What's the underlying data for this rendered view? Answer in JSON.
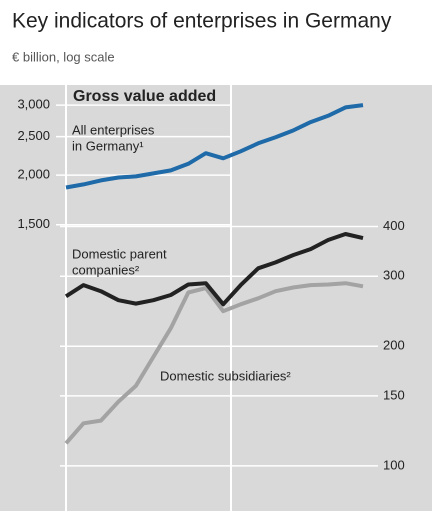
{
  "chart_data": {
    "type": "line",
    "title": "Key indicators of enterprises in Germany",
    "subtitle": "€ billion, log scale",
    "annotations": [
      "Gross value added",
      "All enterprises",
      "in Germany¹",
      "Domestic parent",
      "companies²",
      "Domestic subsidiaries²"
    ],
    "log_scale": true,
    "categories": [
      null,
      null,
      null,
      null,
      null,
      null,
      null,
      null,
      null,
      null,
      null,
      null,
      null,
      null,
      null,
      null,
      null,
      null
    ],
    "ylim": [
      286,
      3370
    ],
    "yticks": [
      {
        "value": 1500,
        "label": "1,500"
      },
      {
        "value": 2000,
        "label": "2,000"
      },
      {
        "value": 2500,
        "label": "2,500"
      },
      {
        "value": 3000,
        "label": "3,000"
      }
    ],
    "y2lim": [
      77,
      908
    ],
    "y2ticks": [
      100,
      150,
      200,
      300,
      400
    ],
    "series": [
      {
        "color": "#1f6aa8",
        "values": [
          1862,
          1895,
          1940,
          1973,
          1985,
          2020,
          2055,
          2135,
          2270,
          2205,
          2296,
          2405,
          2491,
          2590,
          2718,
          2820,
          2960,
          3000
        ]
      },
      {
        "color": "#222222",
        "axis": "y2",
        "values": [
          267,
          285,
          275,
          261,
          256,
          261,
          269,
          286,
          288,
          255,
          285,
          314,
          325,
          339,
          351,
          370,
          383,
          374
        ]
      },
      {
        "color": "#a3a3a3",
        "axis": "y2",
        "values": [
          114,
          128,
          130,
          145,
          159,
          188,
          222,
          273,
          280,
          245,
          255,
          264,
          275,
          281,
          285,
          286,
          288,
          283
        ]
      }
    ]
  }
}
